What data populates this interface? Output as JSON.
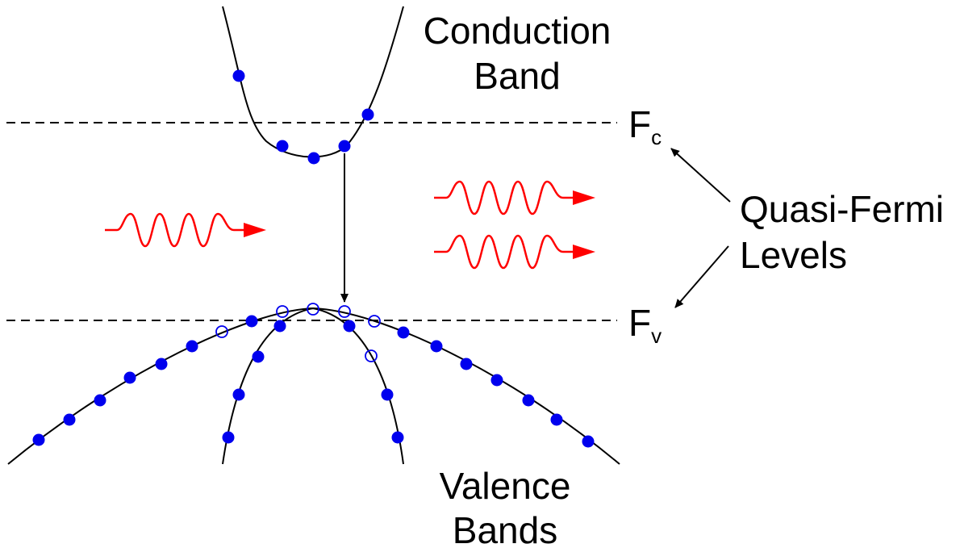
{
  "labels": {
    "conduction_line1": "Conduction",
    "conduction_line2": "Band",
    "valence_line1": "Valence",
    "valence_line2": "Bands",
    "quasi_line1": "Quasi-Fermi",
    "quasi_line2": "Levels",
    "fc_main": "F",
    "fc_sub": "c",
    "fv_main": "F",
    "fv_sub": "v"
  },
  "colors": {
    "electron": "#0000ee",
    "hole_outline": "#0000ee",
    "photon": "#ff0000",
    "line": "#000000"
  },
  "icons": {
    "photon": "wavy-arrow",
    "electron": "filled-circle",
    "hole": "open-circle"
  }
}
